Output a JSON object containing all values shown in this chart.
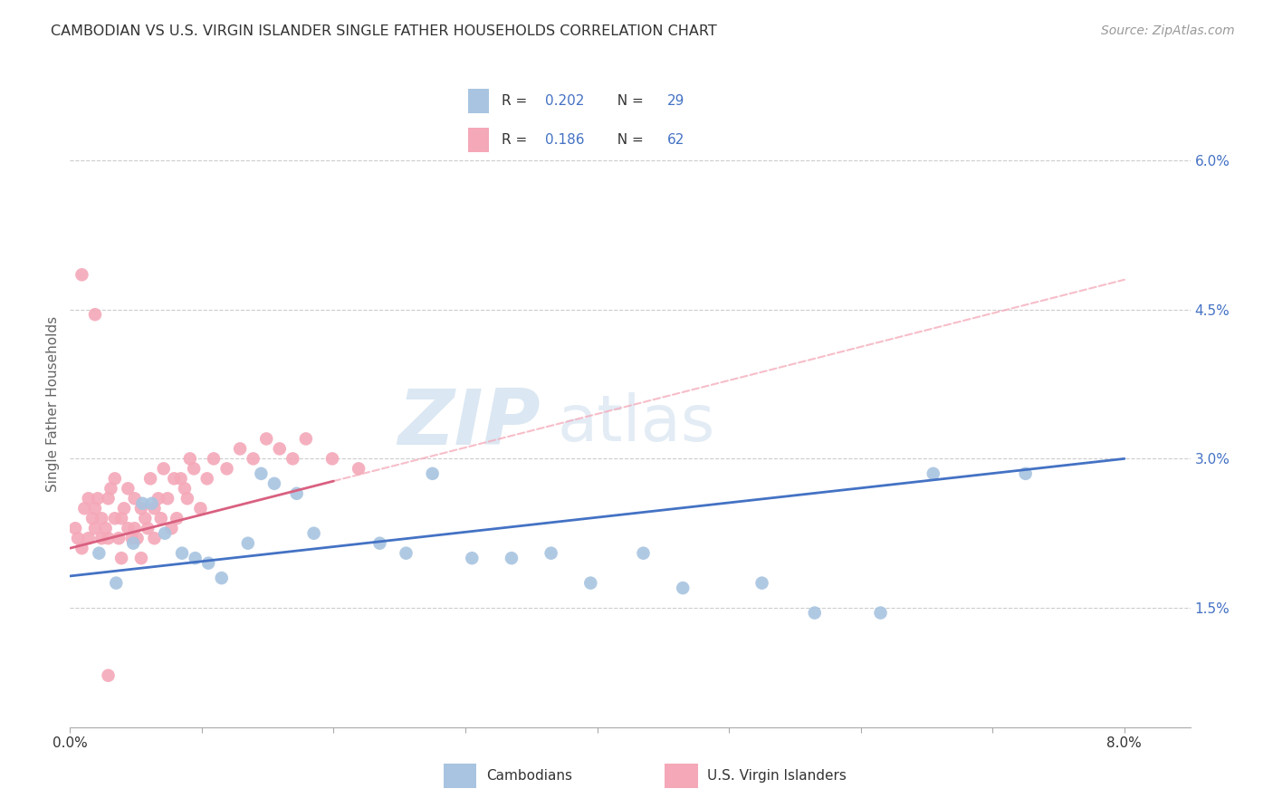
{
  "title": "CAMBODIAN VS U.S. VIRGIN ISLANDER SINGLE FATHER HOUSEHOLDS CORRELATION CHART",
  "source": "Source: ZipAtlas.com",
  "ylabel": "Single Father Households",
  "background_color": "#ffffff",
  "grid_color": "#cccccc",
  "cambodian_color": "#a8c4e0",
  "virgin_islander_color": "#f4a8b8",
  "trend_blue_solid": "#4472c4",
  "trend_pink_solid": "#d96080",
  "trend_dashed_blue": "#a8c4e0",
  "trend_dashed_pink": "#f4a8b8",
  "tick_blue": "#4472c4",
  "blue_line_x0": 0.0,
  "blue_line_y0": 1.82,
  "blue_line_x1": 8.0,
  "blue_line_y1": 3.0,
  "pink_line_x0": 0.0,
  "pink_line_y0": 2.1,
  "pink_line_x1": 8.0,
  "pink_line_y1": 4.8,
  "pink_solid_end_x": 2.0,
  "blue_solid_end_x": 7.5,
  "xlim": [
    0.0,
    8.5
  ],
  "ylim": [
    0.3,
    6.8
  ],
  "yticks": [
    1.5,
    3.0,
    4.5,
    6.0
  ],
  "xticks": [
    0.0,
    1.0,
    2.0,
    3.0,
    4.0,
    5.0,
    6.0,
    7.0,
    8.0
  ],
  "xtick_labels_show": [
    0.0,
    8.0
  ],
  "cam_x": [
    0.22,
    0.35,
    0.48,
    0.55,
    0.62,
    0.72,
    0.85,
    0.95,
    1.05,
    1.15,
    1.35,
    1.45,
    1.55,
    1.72,
    1.85,
    2.35,
    2.55,
    2.75,
    3.05,
    3.35,
    3.65,
    3.95,
    4.35,
    4.65,
    5.25,
    5.65,
    6.15,
    6.55,
    7.25
  ],
  "cam_y": [
    2.05,
    1.75,
    2.15,
    2.55,
    2.55,
    2.25,
    2.05,
    2.0,
    1.95,
    1.8,
    2.15,
    2.85,
    2.75,
    2.65,
    2.25,
    2.15,
    2.05,
    2.85,
    2.0,
    2.0,
    2.05,
    1.75,
    2.05,
    1.7,
    1.75,
    1.45,
    1.45,
    2.85,
    2.85
  ],
  "vi_x": [
    0.04,
    0.06,
    0.09,
    0.11,
    0.14,
    0.14,
    0.17,
    0.19,
    0.19,
    0.21,
    0.24,
    0.24,
    0.27,
    0.29,
    0.29,
    0.31,
    0.34,
    0.34,
    0.37,
    0.39,
    0.39,
    0.41,
    0.44,
    0.44,
    0.47,
    0.49,
    0.49,
    0.51,
    0.54,
    0.54,
    0.57,
    0.59,
    0.61,
    0.64,
    0.64,
    0.67,
    0.69,
    0.71,
    0.74,
    0.77,
    0.79,
    0.81,
    0.84,
    0.87,
    0.89,
    0.91,
    0.94,
    0.99,
    1.04,
    1.09,
    1.19,
    1.29,
    1.39,
    1.49,
    1.59,
    1.69,
    1.79,
    1.99,
    2.19,
    0.09,
    0.19,
    0.29
  ],
  "vi_y": [
    2.3,
    2.2,
    2.1,
    2.5,
    2.6,
    2.2,
    2.4,
    2.3,
    2.5,
    2.6,
    2.2,
    2.4,
    2.3,
    2.2,
    2.6,
    2.7,
    2.4,
    2.8,
    2.2,
    2.4,
    2.0,
    2.5,
    2.3,
    2.7,
    2.2,
    2.3,
    2.6,
    2.2,
    2.0,
    2.5,
    2.4,
    2.3,
    2.8,
    2.2,
    2.5,
    2.6,
    2.4,
    2.9,
    2.6,
    2.3,
    2.8,
    2.4,
    2.8,
    2.7,
    2.6,
    3.0,
    2.9,
    2.5,
    2.8,
    3.0,
    2.9,
    3.1,
    3.0,
    3.2,
    3.1,
    3.0,
    3.2,
    3.0,
    2.9,
    4.85,
    4.45,
    0.82
  ]
}
